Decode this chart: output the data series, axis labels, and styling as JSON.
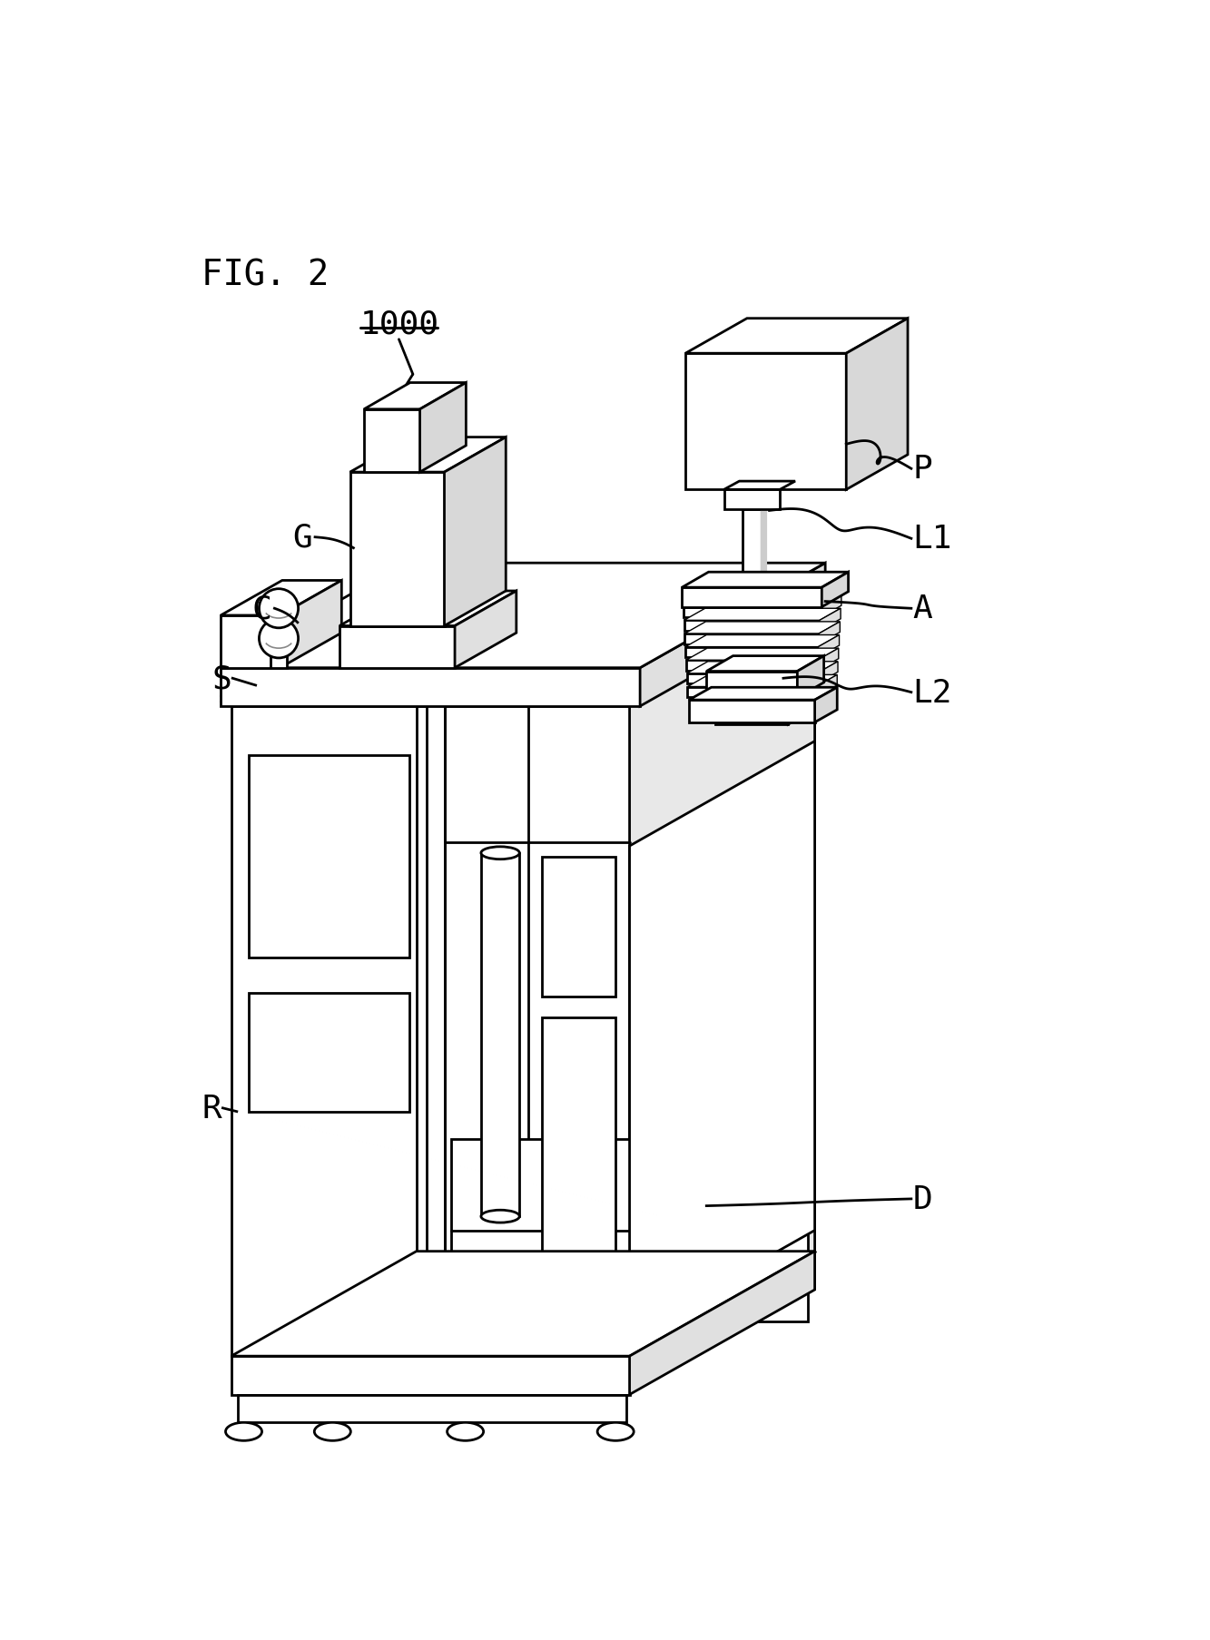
{
  "title": "FIG. 2",
  "bg_color": "#ffffff",
  "line_color": "#000000",
  "lw": 2.0,
  "fig_width": 13.33,
  "fig_height": 18.08,
  "labels": {
    "fig": "FIG. 2",
    "ref": "1000",
    "P": "P",
    "L1": "L1",
    "L2": "L2",
    "A": "A",
    "G": "G",
    "C": "C",
    "S": "S",
    "R": "R",
    "D": "D"
  }
}
